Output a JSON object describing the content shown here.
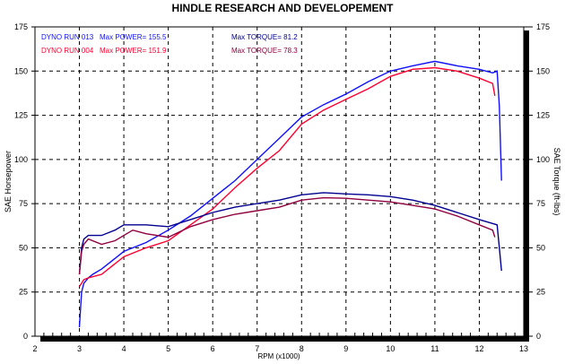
{
  "chart_data": {
    "type": "line",
    "title": "HINDLE RESEARCH AND DEVELOPEMENT",
    "xlabel": "RPM (x1000)",
    "ylabel": "SAE Horsepower",
    "y2label": "SAE Torque (ft-lbs)",
    "xlim": [
      2,
      13
    ],
    "ylim": [
      0,
      175
    ],
    "y2lim": [
      0,
      175
    ],
    "xticks": [
      2,
      3,
      4,
      5,
      6,
      7,
      8,
      9,
      10,
      11,
      12,
      13
    ],
    "yticks": [
      0,
      25,
      50,
      75,
      100,
      125,
      150,
      175
    ],
    "grid": true,
    "legend": [
      {
        "run": "DYNO RUN 013",
        "power": "Max POWER= 155.5",
        "torque": "Max TORQUE= 81.2",
        "color": "#1010ff",
        "tcolor": "#000090"
      },
      {
        "run": "DYNO RUN 004",
        "power": "Max POWER= 151.9",
        "torque": "Max TORQUE= 78.3",
        "color": "#ff0030",
        "tcolor": "#900040"
      }
    ],
    "series": [
      {
        "name": "Run 013 Power",
        "color": "#1010ff",
        "x": [
          3.0,
          3.05,
          3.1,
          3.2,
          3.3,
          3.5,
          4,
          4.5,
          5,
          5.5,
          6,
          6.5,
          7,
          7.5,
          8,
          8.5,
          9,
          9.5,
          10,
          10.5,
          11,
          11.5,
          12,
          12.3,
          12.4,
          12.45,
          12.5
        ],
        "y": [
          5,
          25,
          30,
          33,
          35,
          38,
          48,
          53,
          60,
          68,
          78,
          88,
          100,
          112,
          124,
          131,
          137,
          144,
          150,
          153,
          155.5,
          153,
          151,
          149,
          150,
          130,
          88
        ]
      },
      {
        "name": "Run 004 Power",
        "color": "#ff0030",
        "x": [
          3.0,
          3.05,
          3.1,
          3.2,
          3.5,
          4,
          4.5,
          5,
          5.5,
          6,
          6.5,
          7,
          7.5,
          8,
          8.5,
          9,
          9.5,
          10,
          10.5,
          11,
          11.5,
          12,
          12.3,
          12.35
        ],
        "y": [
          28,
          30,
          32,
          33,
          35,
          45,
          50,
          54,
          63,
          72,
          84,
          95,
          105,
          120,
          128,
          134,
          140,
          147,
          151,
          151.9,
          150,
          146,
          143,
          136
        ]
      },
      {
        "name": "Run 013 Torque",
        "color": "#000090",
        "x": [
          3.0,
          3.05,
          3.1,
          3.2,
          3.5,
          3.8,
          4,
          4.5,
          5,
          5.5,
          6,
          6.5,
          7,
          7.5,
          8,
          8.5,
          9,
          9.5,
          10,
          10.5,
          11,
          11.5,
          12,
          12.4,
          12.45,
          12.5
        ],
        "y": [
          35,
          50,
          55,
          57,
          57,
          60,
          63,
          63,
          62,
          66,
          70,
          73,
          75,
          77,
          80,
          81.2,
          80.5,
          80,
          79,
          77,
          74,
          70,
          66,
          63,
          50,
          37
        ]
      },
      {
        "name": "Run 004 Torque",
        "color": "#900040",
        "x": [
          3.0,
          3.05,
          3.1,
          3.2,
          3.5,
          3.8,
          4.2,
          4.5,
          5,
          5.5,
          6,
          6.5,
          7,
          7.5,
          8,
          8.5,
          9,
          9.5,
          10,
          10.5,
          11,
          11.5,
          12,
          12.3,
          12.35
        ],
        "y": [
          35,
          48,
          52,
          55,
          52,
          54,
          60,
          58,
          56,
          62,
          66,
          69,
          71,
          73,
          77,
          78.3,
          78,
          77,
          76,
          74,
          72,
          68,
          63,
          60,
          56
        ]
      }
    ]
  }
}
